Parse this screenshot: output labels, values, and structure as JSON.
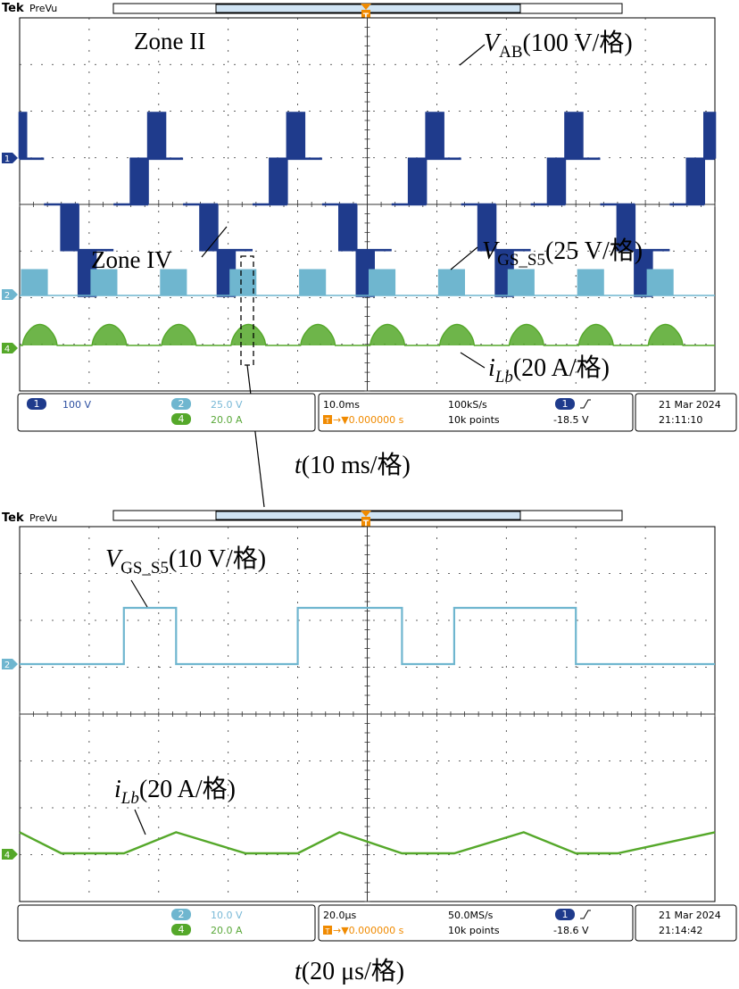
{
  "colors": {
    "ch1": "#1f3b8c",
    "ch2": "#6fb6cf",
    "ch4": "#55a82a",
    "trigger": "#f08a00",
    "grid": "#333333",
    "panel_text_ch1": "#2b4ea0",
    "panel_text_ch2": "#78b8d6",
    "panel_text_ch4": "#5aa83a"
  },
  "top_scope": {
    "brand": "Tek",
    "mode": "PreVu",
    "annotations": {
      "zone2": "Zone II",
      "zone4": "Zone IV",
      "vab": {
        "sym": "V",
        "sub": "AB",
        "unit": "(100 V/格)"
      },
      "vgs": {
        "sym": "V",
        "sub": "GS_S5",
        "unit": "(25 V/格)"
      },
      "ilb": {
        "sym": "i",
        "sub": "Lb",
        "unit": "(20 A/格)"
      }
    },
    "status": {
      "ch1_badge": "1",
      "ch1_scale": "100 V",
      "ch2_badge": "2",
      "ch2_scale": "25.0 V",
      "ch4_badge": "4",
      "ch4_scale": "20.0 A",
      "timebase": "10.0ms",
      "sample_rate": "100kS/s",
      "trigger_pos": "▼0.000000 s",
      "record_length": "10k points",
      "trig_badge": "1",
      "trig_level": "-18.5 V",
      "date": "21 Mar  2024",
      "time": "21:11:10"
    },
    "xlabel_sym": "t",
    "xlabel_unit": "(10 ms/格)"
  },
  "bottom_scope": {
    "brand": "Tek",
    "mode": "PreVu",
    "annotations": {
      "vgs": {
        "sym": "V",
        "sub": "GS_S5",
        "unit": "(10 V/格)"
      },
      "ilb": {
        "sym": "i",
        "sub": "Lb",
        "unit": "(20 A/格)"
      }
    },
    "status": {
      "ch2_badge": "2",
      "ch2_scale": "10.0 V",
      "ch4_badge": "4",
      "ch4_scale": "20.0 A",
      "timebase": "20.0μs",
      "sample_rate": "50.0MS/s",
      "trigger_pos": "▼0.000000 s",
      "record_length": "10k points",
      "trig_badge": "1",
      "trig_level": "-18.6 V",
      "date": "21 Mar  2024",
      "time": "21:14:42"
    },
    "xlabel_sym": "t",
    "xlabel_unit": "(20 μs/格)"
  },
  "chart_data": [
    {
      "type": "line",
      "xlabel": "t(10 ms/格)",
      "x_unit": "ms",
      "x_range": [
        0,
        100
      ],
      "grid": true,
      "series": [
        {
          "name": "VAB(100 V/格)",
          "fundamental_period_ms": 20,
          "levels_div": [
            2,
            1,
            0,
            -1,
            -2,
            -1,
            0,
            1
          ],
          "segment_duration_ms": 2.5,
          "pwm_chopped": true
        },
        {
          "name": "VGS_S5(25 V/格)",
          "period_ms": 10,
          "pulse_width_ms": 3.8,
          "amplitude_div": 0.55
        },
        {
          "name": "iLb(20 A/格)",
          "period_ms": 10,
          "hump_width_ms": 5.0,
          "peak_div": 0.45
        }
      ]
    },
    {
      "type": "line",
      "xlabel": "t(20 μs/格)",
      "x_unit": "μs",
      "x_range": [
        0,
        200
      ],
      "grid": true,
      "series": [
        {
          "name": "VGS_S5(10 V/格)",
          "x": [
            0,
            30,
            30,
            45,
            45,
            80,
            80,
            110,
            110,
            125,
            125,
            160,
            160,
            200
          ],
          "y": [
            0,
            0,
            1.2,
            1.2,
            0,
            0,
            1.2,
            1.2,
            0,
            0,
            1.2,
            1.2,
            0,
            0
          ]
        },
        {
          "name": "iLb(20 A/格)",
          "x": [
            0,
            12,
            30,
            45,
            65,
            80,
            92,
            110,
            125,
            145,
            160,
            172,
            200
          ],
          "y": [
            0.45,
            0,
            0,
            0.45,
            0,
            0,
            0.45,
            0,
            0,
            0.45,
            0,
            0,
            0.45
          ]
        }
      ]
    }
  ]
}
